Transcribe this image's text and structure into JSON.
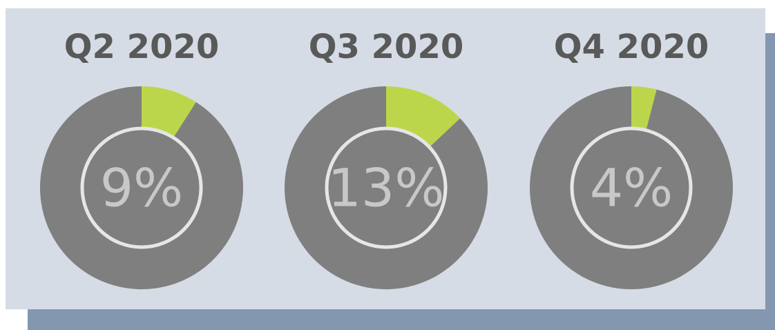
{
  "chart_data": [
    {
      "type": "pie",
      "title": "Q2 2020",
      "values": [
        9,
        91
      ],
      "value_labels": [
        "9%",
        null
      ],
      "colors": [
        "#bcd64b",
        "#7f7f7f"
      ]
    },
    {
      "type": "pie",
      "title": "Q3 2020",
      "values": [
        13,
        87
      ],
      "value_labels": [
        "13%",
        null
      ],
      "colors": [
        "#bcd64b",
        "#7f7f7f"
      ]
    },
    {
      "type": "pie",
      "title": "Q4 2020",
      "values": [
        4,
        96
      ],
      "value_labels": [
        "4%",
        null
      ],
      "colors": [
        "#bcd64b",
        "#7f7f7f"
      ]
    }
  ]
}
